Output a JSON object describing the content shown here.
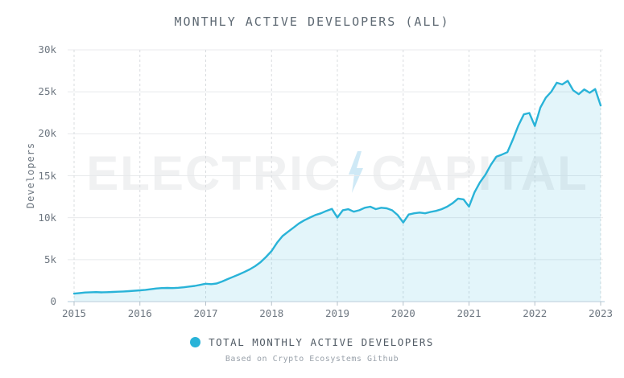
{
  "title": "MONTHLY ACTIVE DEVELOPERS (ALL)",
  "watermark": {
    "left_text": "ELECTRIC",
    "right_text": "CAPITAL",
    "bolt_icon": "lightning-bolt",
    "text_color": "#f0f1f2",
    "bolt_color": "#cfe9f6"
  },
  "legend": {
    "label": "TOTAL MONTHLY ACTIVE DEVELOPERS",
    "dot_color": "#29b3d8"
  },
  "source_note": "Based on Crypto Ecosystems Github",
  "colors": {
    "line": "#29b3d8",
    "fill": "#29b3d8",
    "fill_opacity": 0.13,
    "grid_horizontal": "#e8eaec",
    "grid_vertical": "#d9dcdf",
    "axis_line": "#ccdbe5",
    "axis_tick": "#b4c0ca",
    "title_text": "#5f6a74",
    "tick_text": "#6e7781"
  },
  "chart_data": {
    "type": "area",
    "title": "MONTHLY ACTIVE DEVELOPERS (ALL)",
    "xlabel": "",
    "ylabel": "Developers",
    "ylim": [
      0,
      30000
    ],
    "grid": "horizontal solid, vertical dashed",
    "legend_position": "bottom-center",
    "yticks": {
      "values": [
        0,
        5000,
        10000,
        15000,
        20000,
        25000,
        30000
      ],
      "labels": [
        "0",
        "5k",
        "10k",
        "15k",
        "20k",
        "25k",
        "30k"
      ]
    },
    "xticks": {
      "values": [
        2015,
        2016,
        2017,
        2018,
        2019,
        2020,
        2021,
        2022,
        2023
      ],
      "labels": [
        "2015",
        "2016",
        "2017",
        "2018",
        "2019",
        "2020",
        "2021",
        "2022",
        "2023"
      ]
    },
    "x_interval": "monthly",
    "x_start": "2015-01",
    "x_end": "2023-01",
    "series": [
      {
        "name": "TOTAL MONTHLY ACTIVE DEVELOPERS",
        "color": "#29b3d8",
        "fill_opacity": 0.13,
        "values": [
          950,
          1020,
          1080,
          1110,
          1130,
          1100,
          1120,
          1150,
          1180,
          1210,
          1250,
          1290,
          1340,
          1400,
          1480,
          1560,
          1610,
          1630,
          1610,
          1650,
          1710,
          1790,
          1870,
          1990,
          2130,
          2080,
          2160,
          2400,
          2680,
          2950,
          3220,
          3520,
          3830,
          4220,
          4700,
          5320,
          6030,
          7020,
          7810,
          8320,
          8810,
          9320,
          9700,
          10020,
          10320,
          10520,
          10810,
          11050,
          10020,
          10890,
          11010,
          10720,
          10890,
          11190,
          11310,
          11020,
          11190,
          11120,
          10880,
          10310,
          9420,
          10380,
          10520,
          10610,
          10520,
          10690,
          10810,
          11010,
          11310,
          11720,
          12280,
          12180,
          11320,
          13020,
          14210,
          15120,
          16320,
          17280,
          17520,
          17810,
          19320,
          20980,
          22310,
          22480,
          20920,
          23120,
          24310,
          25020,
          26080,
          25880,
          26310,
          25180,
          24720,
          25280,
          24880,
          25320,
          23380
        ]
      }
    ]
  }
}
